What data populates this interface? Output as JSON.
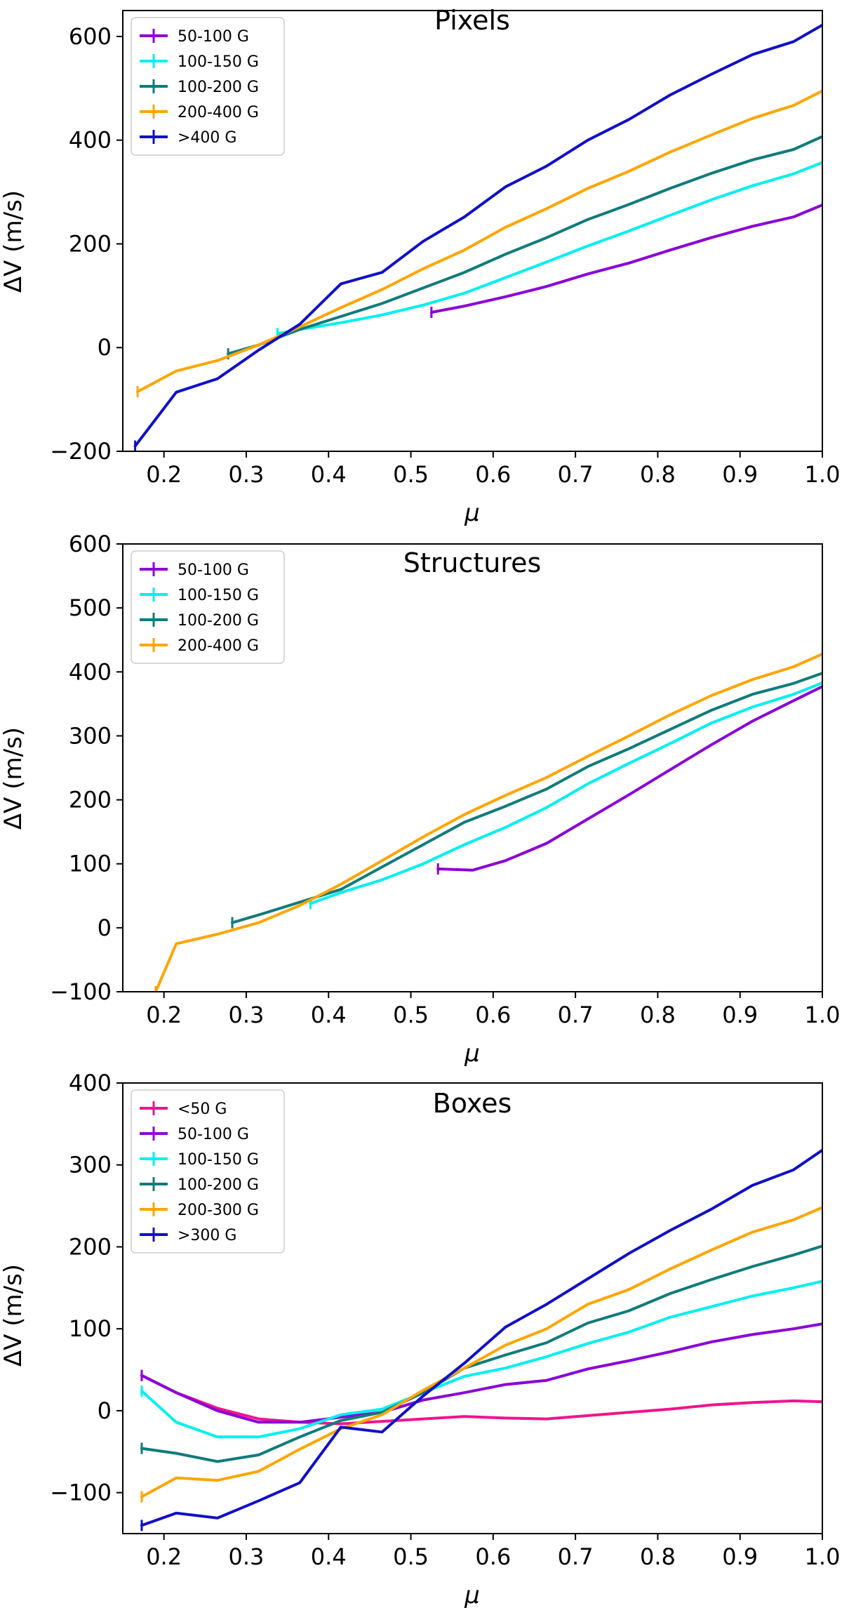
{
  "colors": {
    "purple": "#8b00d8",
    "cyan": "#00f0f0",
    "teal": "#0f7b7b",
    "orange": "#ffa500",
    "blue": "#1010c8",
    "pink": "#f0148c"
  },
  "chart_data": [
    {
      "type": "line",
      "title": "Pixels",
      "xlabel": "μ",
      "ylabel": "ΔV (m/s)",
      "xlim": [
        0.15,
        1.0
      ],
      "ylim": [
        -200,
        650
      ],
      "xticks": [
        0.2,
        0.3,
        0.4,
        0.5,
        0.6,
        0.7,
        0.8,
        0.9,
        1.0
      ],
      "xtick_labels": [
        "0.2",
        "0.3",
        "0.4",
        "0.5",
        "0.6",
        "0.7",
        "0.8",
        "0.9",
        "1.0"
      ],
      "yticks": [
        -200,
        0,
        200,
        400,
        600
      ],
      "ytick_labels": [
        "−200",
        "0",
        "200",
        "400",
        "600"
      ],
      "legend_position": "top-left",
      "series": [
        {
          "name": "50-100 G",
          "color": "purple",
          "x": [
            0.525,
            0.565,
            0.615,
            0.665,
            0.715,
            0.765,
            0.815,
            0.865,
            0.915,
            0.965,
            1.0
          ],
          "y": [
            68,
            80,
            98,
            118,
            142,
            163,
            188,
            212,
            234,
            252,
            275
          ]
        },
        {
          "name": "100-150 G",
          "color": "cyan",
          "x": [
            0.338,
            0.365,
            0.415,
            0.465,
            0.515,
            0.565,
            0.615,
            0.665,
            0.715,
            0.765,
            0.815,
            0.865,
            0.915,
            0.965,
            1.0
          ],
          "y": [
            27,
            35,
            48,
            63,
            82,
            105,
            135,
            165,
            196,
            225,
            255,
            285,
            312,
            335,
            357
          ]
        },
        {
          "name": "100-200 G",
          "color": "teal",
          "x": [
            0.278,
            0.315,
            0.365,
            0.415,
            0.465,
            0.515,
            0.565,
            0.615,
            0.665,
            0.715,
            0.765,
            0.815,
            0.865,
            0.915,
            0.965,
            1.0
          ],
          "y": [
            -12,
            5,
            35,
            60,
            85,
            115,
            145,
            180,
            212,
            247,
            276,
            307,
            336,
            362,
            382,
            407
          ]
        },
        {
          "name": "200-400 G",
          "color": "orange",
          "x": [
            0.168,
            0.215,
            0.265,
            0.315,
            0.365,
            0.415,
            0.465,
            0.515,
            0.565,
            0.615,
            0.665,
            0.715,
            0.765,
            0.815,
            0.865,
            0.915,
            0.965,
            1.0
          ],
          "y": [
            -85,
            -45,
            -25,
            5,
            40,
            77,
            112,
            152,
            188,
            232,
            268,
            307,
            340,
            377,
            410,
            442,
            467,
            495
          ]
        },
        {
          "name": ">400 G",
          "color": "blue",
          "x": [
            0.165,
            0.215,
            0.265,
            0.315,
            0.365,
            0.415,
            0.465,
            0.515,
            0.565,
            0.615,
            0.665,
            0.715,
            0.765,
            0.815,
            0.865,
            0.915,
            0.965,
            1.0
          ],
          "y": [
            -190,
            -86,
            -60,
            -5,
            45,
            123,
            145,
            205,
            252,
            310,
            350,
            400,
            440,
            487,
            527,
            565,
            590,
            622
          ]
        }
      ]
    },
    {
      "type": "line",
      "title": "Structures",
      "xlabel": "μ",
      "ylabel": "ΔV (m/s)",
      "xlim": [
        0.15,
        1.0
      ],
      "ylim": [
        -100,
        600
      ],
      "xticks": [
        0.2,
        0.3,
        0.4,
        0.5,
        0.6,
        0.7,
        0.8,
        0.9,
        1.0
      ],
      "xtick_labels": [
        "0.2",
        "0.3",
        "0.4",
        "0.5",
        "0.6",
        "0.7",
        "0.8",
        "0.9",
        "1.0"
      ],
      "yticks": [
        -100,
        0,
        100,
        200,
        300,
        400,
        500,
        600
      ],
      "ytick_labels": [
        "−100",
        "0",
        "100",
        "200",
        "300",
        "400",
        "500",
        "600"
      ],
      "legend_position": "top-left",
      "series": [
        {
          "name": "50-100 G",
          "color": "purple",
          "x": [
            0.533,
            0.575,
            0.615,
            0.665,
            0.715,
            0.765,
            0.815,
            0.865,
            0.915,
            0.965,
            1.0
          ],
          "y": [
            92,
            90,
            105,
            132,
            170,
            208,
            247,
            286,
            323,
            355,
            377
          ]
        },
        {
          "name": "100-150 G",
          "color": "cyan",
          "x": [
            0.378,
            0.415,
            0.465,
            0.515,
            0.565,
            0.615,
            0.665,
            0.715,
            0.765,
            0.815,
            0.865,
            0.915,
            0.965,
            1.0
          ],
          "y": [
            38,
            55,
            75,
            100,
            130,
            157,
            188,
            225,
            257,
            288,
            320,
            345,
            365,
            383
          ]
        },
        {
          "name": "100-200 G",
          "color": "teal",
          "x": [
            0.283,
            0.315,
            0.365,
            0.415,
            0.465,
            0.515,
            0.565,
            0.615,
            0.665,
            0.715,
            0.765,
            0.815,
            0.865,
            0.915,
            0.965,
            1.0
          ],
          "y": [
            8,
            20,
            40,
            60,
            95,
            130,
            165,
            190,
            217,
            252,
            280,
            310,
            340,
            365,
            382,
            398
          ]
        },
        {
          "name": "200-400 G",
          "color": "orange",
          "x": [
            0.19,
            0.215,
            0.265,
            0.315,
            0.365,
            0.415,
            0.465,
            0.515,
            0.565,
            0.615,
            0.665,
            0.715,
            0.765,
            0.815,
            0.865,
            0.915,
            0.965,
            1.0
          ],
          "y": [
            -100,
            -25,
            -10,
            8,
            35,
            68,
            105,
            142,
            177,
            207,
            235,
            268,
            300,
            333,
            363,
            388,
            408,
            428
          ]
        }
      ]
    },
    {
      "type": "line",
      "title": "Boxes",
      "xlabel": "μ",
      "ylabel": "ΔV (m/s)",
      "xlim": [
        0.15,
        1.0
      ],
      "ylim": [
        -150,
        400
      ],
      "xticks": [
        0.2,
        0.3,
        0.4,
        0.5,
        0.6,
        0.7,
        0.8,
        0.9,
        1.0
      ],
      "xtick_labels": [
        "0.2",
        "0.3",
        "0.4",
        "0.5",
        "0.6",
        "0.7",
        "0.8",
        "0.9",
        "1.0"
      ],
      "yticks": [
        -100,
        0,
        100,
        200,
        300,
        400
      ],
      "ytick_labels": [
        "−100",
        "0",
        "100",
        "200",
        "300",
        "400"
      ],
      "legend_position": "top-left",
      "series": [
        {
          "name": "<50 G",
          "color": "pink",
          "x": [
            0.173,
            0.215,
            0.265,
            0.315,
            0.365,
            0.415,
            0.465,
            0.515,
            0.565,
            0.615,
            0.665,
            0.715,
            0.765,
            0.815,
            0.865,
            0.915,
            0.965,
            1.0
          ],
          "y": [
            43,
            22,
            3,
            -10,
            -14,
            -16,
            -13,
            -10,
            -7,
            -9,
            -10,
            -6,
            -2,
            2,
            7,
            10,
            12,
            11
          ]
        },
        {
          "name": "50-100 G",
          "color": "purple",
          "x": [
            0.173,
            0.215,
            0.265,
            0.315,
            0.365,
            0.415,
            0.465,
            0.515,
            0.565,
            0.615,
            0.665,
            0.715,
            0.765,
            0.815,
            0.865,
            0.915,
            0.965,
            1.0
          ],
          "y": [
            43,
            22,
            0,
            -14,
            -14,
            -8,
            -2,
            13,
            22,
            32,
            37,
            51,
            61,
            72,
            84,
            93,
            100,
            106
          ]
        },
        {
          "name": "100-150 G",
          "color": "cyan",
          "x": [
            0.173,
            0.215,
            0.265,
            0.315,
            0.365,
            0.415,
            0.465,
            0.515,
            0.565,
            0.615,
            0.665,
            0.715,
            0.765,
            0.815,
            0.865,
            0.915,
            0.965,
            1.0
          ],
          "y": [
            24,
            -14,
            -32,
            -32,
            -22,
            -5,
            2,
            22,
            42,
            52,
            66,
            82,
            96,
            114,
            127,
            140,
            150,
            158
          ]
        },
        {
          "name": "100-200 G",
          "color": "teal",
          "x": [
            0.173,
            0.215,
            0.265,
            0.315,
            0.365,
            0.415,
            0.465,
            0.515,
            0.565,
            0.615,
            0.665,
            0.715,
            0.765,
            0.815,
            0.865,
            0.915,
            0.965,
            1.0
          ],
          "y": [
            -46,
            -52,
            -62,
            -54,
            -32,
            -12,
            -2,
            22,
            52,
            68,
            83,
            107,
            122,
            143,
            160,
            176,
            190,
            201
          ]
        },
        {
          "name": "200-300 G",
          "color": "orange",
          "x": [
            0.173,
            0.215,
            0.265,
            0.315,
            0.365,
            0.415,
            0.465,
            0.515,
            0.565,
            0.615,
            0.665,
            0.715,
            0.765,
            0.815,
            0.865,
            0.915,
            0.965,
            1.0
          ],
          "y": [
            -105,
            -82,
            -85,
            -74,
            -47,
            -22,
            -5,
            25,
            52,
            80,
            100,
            130,
            148,
            173,
            196,
            218,
            233,
            248
          ]
        },
        {
          "name": ">300 G",
          "color": "blue",
          "x": [
            0.173,
            0.215,
            0.265,
            0.315,
            0.365,
            0.415,
            0.465,
            0.515,
            0.565,
            0.615,
            0.665,
            0.715,
            0.765,
            0.815,
            0.865,
            0.915,
            0.965,
            1.0
          ],
          "y": [
            -140,
            -125,
            -131,
            -110,
            -88,
            -20,
            -26,
            18,
            58,
            102,
            130,
            161,
            192,
            220,
            246,
            275,
            294,
            318
          ]
        }
      ]
    }
  ]
}
